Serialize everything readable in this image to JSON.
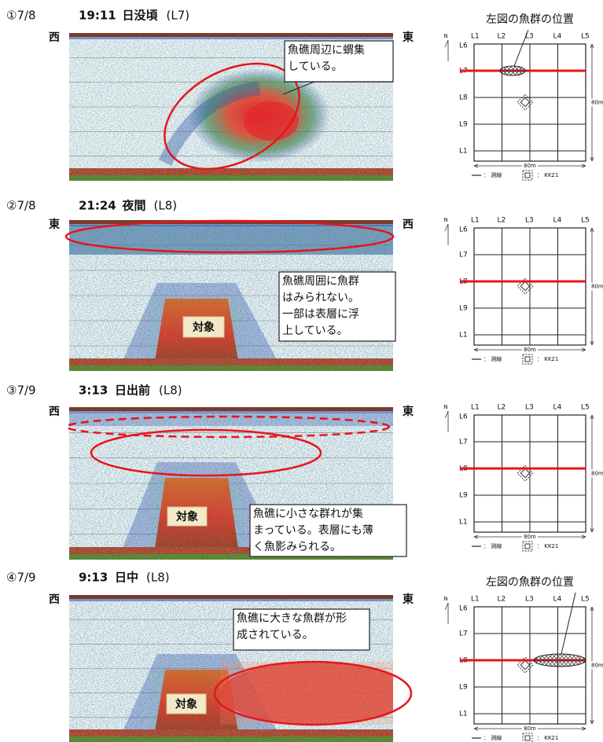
{
  "panels": [
    {
      "heading": {
        "number": "①7/8",
        "time": "19:11",
        "period": "日没頃",
        "line": "(L7)"
      },
      "dir_left": "西",
      "dir_right": "東",
      "note": [
        "魚礁周辺に蝟集",
        "している。"
      ],
      "map": {
        "title": "左図の魚群の位置",
        "north": "N",
        "columns": [
          "L1",
          "L2",
          "L3",
          "L4",
          "L5"
        ],
        "rows": [
          "L6",
          "L7",
          "L8",
          "L9",
          "L1"
        ],
        "width": "80m",
        "height": "80m",
        "legend_line": "： 測線",
        "legend_reef": "： KK21"
      }
    },
    {
      "heading": {
        "number": "②7/8",
        "time": "21:24",
        "period": "夜間",
        "line": "(L8)"
      },
      "dir_left": "東",
      "dir_right": "西",
      "note": [
        "魚礁周囲に魚群",
        "はみられない。",
        "一部は表層に浮",
        "上している。"
      ],
      "target": "対象",
      "map": {
        "north": "N",
        "columns": [
          "L1",
          "L2",
          "L3",
          "L4",
          "L5"
        ],
        "rows": [
          "L6",
          "L7",
          "L8",
          "L9",
          "L1"
        ],
        "width": "80m",
        "height": "80m",
        "legend_line": "： 測線",
        "legend_reef": "： KK21"
      }
    },
    {
      "heading": {
        "number": "③7/9",
        "time": "3:13",
        "period": "日出前",
        "line": "(L8)"
      },
      "dir_left": "西",
      "dir_right": "東",
      "note": [
        "魚礁に小さな群れが集",
        "まっている。表層にも薄",
        "く魚影みられる。"
      ],
      "target": "対象",
      "map": {
        "north": "N",
        "columns": [
          "L1",
          "L2",
          "L3",
          "L4",
          "L5"
        ],
        "rows": [
          "L6",
          "L7",
          "L8",
          "L9",
          "L1"
        ],
        "width": "80m",
        "height": "80m",
        "legend_line": "： 測線",
        "legend_reef": "： KK21"
      }
    },
    {
      "heading": {
        "number": "④7/9",
        "time": "9:13",
        "period": "日中",
        "line": "(L8)"
      },
      "dir_left": "西",
      "dir_right": "東",
      "note": [
        "魚礁に大きな魚群が形",
        "成されている。"
      ],
      "target": "対象",
      "map": {
        "title": "左図の魚群の位置",
        "north": "N",
        "columns": [
          "L1",
          "L2",
          "L3",
          "L4",
          "L5"
        ],
        "rows": [
          "L6",
          "L7",
          "L8",
          "L9",
          "L1"
        ],
        "width": "80m",
        "height": "80m",
        "legend_line": "： 測線",
        "legend_reef": "： KK21"
      }
    }
  ]
}
